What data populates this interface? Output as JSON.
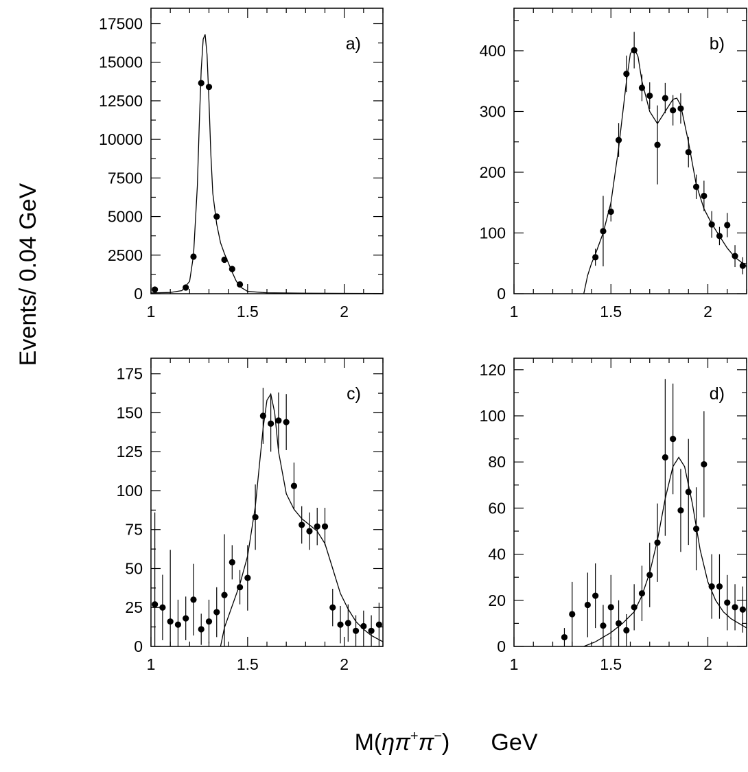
{
  "ylabel": "Events/ 0.04 GeV",
  "xlabel_parts": {
    "m": "M(",
    "eta": "η",
    "pi1": "π",
    "plus": "+",
    "pi2": "π",
    "minus": "−",
    "close": ")",
    "unit": "GeV"
  },
  "chart_data": [
    {
      "type": "scatter",
      "panel_label": "a)",
      "xlim": [
        1.0,
        2.2
      ],
      "ylim": [
        0,
        18500
      ],
      "xticks": [
        1,
        1.5,
        2
      ],
      "xtick_labels": [
        "1",
        "1.5",
        "2"
      ],
      "yticks": [
        0,
        2500,
        5000,
        7500,
        10000,
        12500,
        15000,
        17500
      ],
      "ytick_labels": [
        "0",
        "2500",
        "5000",
        "7500",
        "10000",
        "12500",
        "15000",
        "17500"
      ],
      "points": [
        {
          "x": 1.02,
          "y": 270,
          "err": 0
        },
        {
          "x": 1.18,
          "y": 400,
          "err": 0
        },
        {
          "x": 1.22,
          "y": 2400,
          "err": 0
        },
        {
          "x": 1.26,
          "y": 13650,
          "err": 0
        },
        {
          "x": 1.3,
          "y": 13400,
          "err": 0
        },
        {
          "x": 1.34,
          "y": 5000,
          "err": 0
        },
        {
          "x": 1.38,
          "y": 2200,
          "err": 0
        },
        {
          "x": 1.42,
          "y": 1600,
          "err": 0
        },
        {
          "x": 1.46,
          "y": 600,
          "err": 0
        }
      ],
      "fit": {
        "x": [
          1.0,
          1.1,
          1.16,
          1.2,
          1.22,
          1.24,
          1.25,
          1.26,
          1.27,
          1.28,
          1.29,
          1.3,
          1.31,
          1.32,
          1.34,
          1.36,
          1.38,
          1.4,
          1.42,
          1.44,
          1.46,
          1.5,
          1.6,
          1.8,
          2.2
        ],
        "y": [
          50,
          80,
          200,
          800,
          2500,
          7000,
          11000,
          14500,
          16500,
          16800,
          15500,
          12500,
          9000,
          6500,
          4500,
          3300,
          2600,
          2000,
          1400,
          850,
          450,
          150,
          60,
          30,
          20
        ]
      }
    },
    {
      "type": "scatter",
      "panel_label": "b)",
      "xlim": [
        1.0,
        2.2
      ],
      "ylim": [
        0,
        470
      ],
      "xticks": [
        1,
        1.5,
        2
      ],
      "xtick_labels": [
        "1",
        "1.5",
        "2"
      ],
      "yticks": [
        0,
        100,
        200,
        300,
        400
      ],
      "ytick_labels": [
        "0",
        "100",
        "200",
        "300",
        "400"
      ],
      "points": [
        {
          "x": 1.42,
          "y": 60,
          "err": 14
        },
        {
          "x": 1.46,
          "y": 103,
          "err": 58
        },
        {
          "x": 1.5,
          "y": 135,
          "err": 16
        },
        {
          "x": 1.54,
          "y": 253,
          "err": 28
        },
        {
          "x": 1.58,
          "y": 362,
          "err": 30
        },
        {
          "x": 1.62,
          "y": 401,
          "err": 30
        },
        {
          "x": 1.66,
          "y": 339,
          "err": 22
        },
        {
          "x": 1.7,
          "y": 326,
          "err": 22
        },
        {
          "x": 1.74,
          "y": 245,
          "err": 65
        },
        {
          "x": 1.78,
          "y": 322,
          "err": 25
        },
        {
          "x": 1.82,
          "y": 302,
          "err": 25
        },
        {
          "x": 1.86,
          "y": 305,
          "err": 25
        },
        {
          "x": 1.9,
          "y": 233,
          "err": 25
        },
        {
          "x": 1.94,
          "y": 176,
          "err": 20
        },
        {
          "x": 1.98,
          "y": 161,
          "err": 25
        },
        {
          "x": 2.02,
          "y": 114,
          "err": 22
        },
        {
          "x": 2.06,
          "y": 95,
          "err": 15
        },
        {
          "x": 2.1,
          "y": 113,
          "err": 20
        },
        {
          "x": 2.14,
          "y": 62,
          "err": 18
        },
        {
          "x": 2.18,
          "y": 46,
          "err": 14
        }
      ],
      "fit": {
        "x": [
          1.36,
          1.38,
          1.4,
          1.42,
          1.46,
          1.5,
          1.54,
          1.58,
          1.6,
          1.62,
          1.64,
          1.66,
          1.7,
          1.74,
          1.78,
          1.82,
          1.84,
          1.86,
          1.9,
          1.94,
          1.98,
          2.02,
          2.06,
          2.1,
          2.14,
          2.2
        ],
        "y": [
          0,
          30,
          50,
          65,
          100,
          150,
          240,
          350,
          395,
          405,
          390,
          350,
          300,
          280,
          300,
          320,
          322,
          310,
          250,
          180,
          140,
          115,
          95,
          75,
          60,
          45
        ]
      }
    },
    {
      "type": "scatter",
      "panel_label": "c)",
      "xlim": [
        1.0,
        2.2
      ],
      "ylim": [
        0,
        185
      ],
      "xticks": [
        1,
        1.5,
        2
      ],
      "xtick_labels": [
        "1",
        "1.5",
        "2"
      ],
      "yticks": [
        0,
        25,
        50,
        75,
        100,
        125,
        150,
        175
      ],
      "ytick_labels": [
        "0",
        "25",
        "50",
        "75",
        "100",
        "125",
        "150",
        "175"
      ],
      "points": [
        {
          "x": 1.02,
          "y": 27,
          "err": 59
        },
        {
          "x": 1.06,
          "y": 25,
          "err": 21
        },
        {
          "x": 1.1,
          "y": 16,
          "err": 46
        },
        {
          "x": 1.14,
          "y": 14,
          "err": 16
        },
        {
          "x": 1.18,
          "y": 18,
          "err": 14
        },
        {
          "x": 1.22,
          "y": 30,
          "err": 23
        },
        {
          "x": 1.26,
          "y": 11,
          "err": 10
        },
        {
          "x": 1.3,
          "y": 16,
          "err": 14
        },
        {
          "x": 1.34,
          "y": 22,
          "err": 16
        },
        {
          "x": 1.38,
          "y": 33,
          "err": 39
        },
        {
          "x": 1.42,
          "y": 54,
          "err": 11
        },
        {
          "x": 1.46,
          "y": 38,
          "err": 11
        },
        {
          "x": 1.5,
          "y": 44,
          "err": 21
        },
        {
          "x": 1.54,
          "y": 83,
          "err": 21
        },
        {
          "x": 1.58,
          "y": 148,
          "err": 18
        },
        {
          "x": 1.62,
          "y": 143,
          "err": 18
        },
        {
          "x": 1.66,
          "y": 145,
          "err": 18
        },
        {
          "x": 1.7,
          "y": 144,
          "err": 18
        },
        {
          "x": 1.74,
          "y": 103,
          "err": 15
        },
        {
          "x": 1.78,
          "y": 78,
          "err": 12
        },
        {
          "x": 1.82,
          "y": 74,
          "err": 12
        },
        {
          "x": 1.86,
          "y": 77,
          "err": 12
        },
        {
          "x": 1.9,
          "y": 77,
          "err": 12
        },
        {
          "x": 1.94,
          "y": 25,
          "err": 12
        },
        {
          "x": 1.98,
          "y": 14,
          "err": 12
        },
        {
          "x": 2.02,
          "y": 15,
          "err": 12
        },
        {
          "x": 2.06,
          "y": 10,
          "err": 10
        },
        {
          "x": 2.1,
          "y": 13,
          "err": 10
        },
        {
          "x": 2.14,
          "y": 10,
          "err": 10
        },
        {
          "x": 2.18,
          "y": 14,
          "err": 14
        }
      ],
      "fit": {
        "x": [
          1.36,
          1.38,
          1.42,
          1.46,
          1.5,
          1.54,
          1.56,
          1.58,
          1.6,
          1.62,
          1.64,
          1.66,
          1.7,
          1.74,
          1.78,
          1.82,
          1.86,
          1.9,
          1.94,
          1.98,
          2.02,
          2.06,
          2.1,
          2.14,
          2.2
        ],
        "y": [
          0,
          12,
          26,
          40,
          58,
          90,
          115,
          140,
          158,
          162,
          150,
          125,
          98,
          88,
          82,
          78,
          74,
          66,
          50,
          34,
          24,
          16,
          11,
          7,
          3
        ]
      }
    },
    {
      "type": "scatter",
      "panel_label": "d)",
      "xlim": [
        1.0,
        2.2
      ],
      "ylim": [
        0,
        125
      ],
      "xticks": [
        1,
        1.5,
        2
      ],
      "xtick_labels": [
        "1",
        "1.5",
        "2"
      ],
      "yticks": [
        0,
        20,
        40,
        60,
        80,
        100,
        120
      ],
      "ytick_labels": [
        "0",
        "20",
        "40",
        "60",
        "80",
        "100",
        "120"
      ],
      "points": [
        {
          "x": 1.26,
          "y": 4,
          "err": 4
        },
        {
          "x": 1.3,
          "y": 14,
          "err": 14
        },
        {
          "x": 1.38,
          "y": 18,
          "err": 14
        },
        {
          "x": 1.42,
          "y": 22,
          "err": 14
        },
        {
          "x": 1.46,
          "y": 9,
          "err": 9
        },
        {
          "x": 1.5,
          "y": 17,
          "err": 14
        },
        {
          "x": 1.54,
          "y": 10,
          "err": 10
        },
        {
          "x": 1.58,
          "y": 7,
          "err": 7
        },
        {
          "x": 1.62,
          "y": 17,
          "err": 10
        },
        {
          "x": 1.66,
          "y": 23,
          "err": 12
        },
        {
          "x": 1.7,
          "y": 31,
          "err": 14
        },
        {
          "x": 1.74,
          "y": 45,
          "err": 17
        },
        {
          "x": 1.78,
          "y": 82,
          "err": 34
        },
        {
          "x": 1.82,
          "y": 90,
          "err": 24
        },
        {
          "x": 1.86,
          "y": 59,
          "err": 18
        },
        {
          "x": 1.9,
          "y": 67,
          "err": 23
        },
        {
          "x": 1.94,
          "y": 51,
          "err": 18
        },
        {
          "x": 1.98,
          "y": 79,
          "err": 23
        },
        {
          "x": 2.02,
          "y": 26,
          "err": 14
        },
        {
          "x": 2.06,
          "y": 26,
          "err": 14
        },
        {
          "x": 2.1,
          "y": 19,
          "err": 12
        },
        {
          "x": 2.14,
          "y": 17,
          "err": 10
        },
        {
          "x": 2.18,
          "y": 16,
          "err": 10
        }
      ],
      "fit": {
        "x": [
          1.36,
          1.42,
          1.5,
          1.56,
          1.62,
          1.66,
          1.7,
          1.74,
          1.78,
          1.82,
          1.85,
          1.88,
          1.92,
          1.96,
          2.0,
          2.04,
          2.08,
          2.12,
          2.16,
          2.2
        ],
        "y": [
          0,
          2,
          6,
          10,
          15,
          22,
          32,
          46,
          64,
          78,
          82,
          78,
          62,
          42,
          28,
          20,
          15,
          12,
          10,
          8
        ]
      }
    }
  ]
}
